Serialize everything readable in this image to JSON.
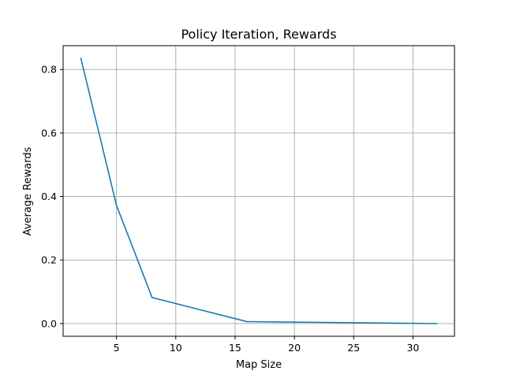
{
  "chart_data": {
    "type": "line",
    "title": "Policy Iteration, Rewards",
    "xlabel": "Map Size",
    "ylabel": "Average Rewards",
    "xlim": [
      0.5,
      33.5
    ],
    "ylim": [
      -0.04,
      0.875
    ],
    "xticks": [
      5,
      10,
      15,
      20,
      25,
      30
    ],
    "xtick_labels": [
      "5",
      "10",
      "15",
      "20",
      "25",
      "30"
    ],
    "yticks": [
      0.0,
      0.2,
      0.4,
      0.6,
      0.8
    ],
    "ytick_labels": [
      "0.0",
      "0.2",
      "0.4",
      "0.6",
      "0.8"
    ],
    "grid": true,
    "series": [
      {
        "color": "#1f77b4",
        "x": [
          2,
          5,
          8,
          16,
          32
        ],
        "y": [
          0.835,
          0.372,
          0.082,
          0.006,
          0.0
        ]
      }
    ]
  }
}
